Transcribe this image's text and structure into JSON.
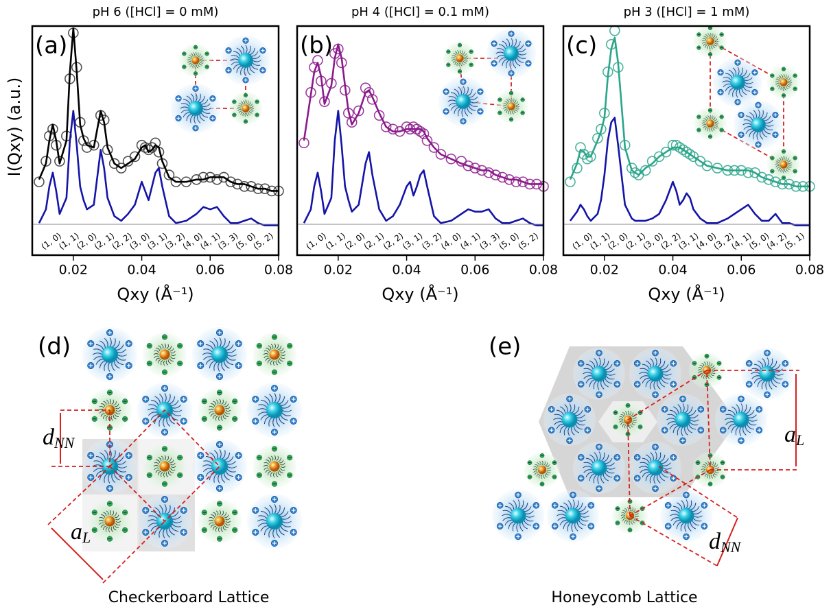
{
  "chart_data": [
    {
      "type": "line",
      "title": "pH 6 ([HCl] = 0 mM)",
      "panel_label": "(a)",
      "xlabel": "Qxy (Å⁻¹)",
      "ylabel": "I(Qxy) (a.u.)",
      "xlim": [
        0.008,
        0.08
      ],
      "xticks": [
        0.02,
        0.04,
        0.06,
        0.08
      ],
      "ylim": [
        0,
        100
      ],
      "x": [
        0.01,
        0.012,
        0.013,
        0.014,
        0.015,
        0.016,
        0.018,
        0.019,
        0.02,
        0.021,
        0.022,
        0.023,
        0.024,
        0.026,
        0.028,
        0.029,
        0.03,
        0.032,
        0.034,
        0.036,
        0.038,
        0.04,
        0.041,
        0.042,
        0.043,
        0.044,
        0.045,
        0.046,
        0.048,
        0.05,
        0.053,
        0.056,
        0.058,
        0.06,
        0.062,
        0.064,
        0.066,
        0.068,
        0.07,
        0.072,
        0.074,
        0.076,
        0.078,
        0.08
      ],
      "series": [
        {
          "style": "markers",
          "color": "#333333",
          "values": [
            32,
            41,
            52,
            55,
            48,
            41,
            52,
            77,
            97,
            82,
            58,
            50,
            47,
            48,
            61,
            59,
            46,
            40,
            38,
            41,
            43,
            48,
            47,
            46,
            47,
            49,
            45,
            40,
            35,
            32,
            32,
            33,
            34,
            34,
            33,
            34,
            32,
            31,
            30,
            30,
            29,
            29,
            28,
            28
          ]
        },
        {
          "style": "line",
          "color": "#000000",
          "values": [
            33,
            40,
            50,
            57,
            50,
            40,
            50,
            80,
            99,
            80,
            57,
            51,
            48,
            47,
            63,
            58,
            47,
            40,
            38,
            40,
            42,
            47,
            48,
            45,
            46,
            48,
            47,
            41,
            34,
            32,
            32,
            33,
            33,
            34,
            34,
            34,
            32,
            31,
            31,
            30,
            29,
            29,
            28,
            28
          ]
        },
        {
          "style": "line",
          "color": "#1414a8",
          "values": [
            14,
            20,
            30,
            36,
            28,
            18,
            25,
            50,
            63,
            48,
            30,
            24,
            20,
            22,
            46,
            38,
            25,
            17,
            15,
            18,
            22,
            32,
            28,
            24,
            30,
            36,
            38,
            30,
            17,
            14,
            15,
            18,
            21,
            20,
            21,
            17,
            14,
            14,
            15,
            16,
            14,
            13,
            13,
            13
          ]
        }
      ],
      "peak_labels": [
        "(1, 0)",
        "(1, 1)",
        "(2, 0)",
        "(2, 1)",
        "(2, 2)",
        "(3, 0)",
        "(3, 1)",
        "(3, 2)",
        "(4, 0)",
        "(4, 1)",
        "(3, 3)",
        "(5, 0)",
        "(5, 2)"
      ]
    },
    {
      "type": "line",
      "title": "pH 4 ([HCl] = 0.1 mM)",
      "panel_label": "(b)",
      "xlabel": "Qxy (Å⁻¹)",
      "xlim": [
        0.008,
        0.08
      ],
      "xticks": [
        0.02,
        0.04,
        0.06,
        0.08
      ],
      "ylim": [
        0,
        100
      ],
      "x": [
        0.01,
        0.012,
        0.013,
        0.014,
        0.015,
        0.016,
        0.018,
        0.019,
        0.02,
        0.021,
        0.022,
        0.023,
        0.024,
        0.026,
        0.028,
        0.029,
        0.03,
        0.032,
        0.034,
        0.036,
        0.038,
        0.04,
        0.041,
        0.042,
        0.043,
        0.044,
        0.045,
        0.046,
        0.048,
        0.05,
        0.053,
        0.056,
        0.058,
        0.06,
        0.062,
        0.064,
        0.066,
        0.068,
        0.07,
        0.072,
        0.074,
        0.076,
        0.078,
        0.08
      ],
      "series": [
        {
          "style": "markers",
          "color": "#8b1a8b",
          "values": [
            49,
            71,
            82,
            85,
            76,
            67,
            75,
            88,
            90,
            84,
            72,
            62,
            58,
            63,
            73,
            71,
            68,
            61,
            56,
            55,
            54,
            56,
            55,
            56,
            55,
            54,
            53,
            50,
            47,
            44,
            42,
            41,
            39,
            38,
            37,
            36,
            35,
            34,
            33,
            32,
            32,
            31,
            31,
            30
          ]
        },
        {
          "style": "line",
          "color": "#8b1a8b",
          "values": [
            50,
            70,
            80,
            84,
            78,
            66,
            74,
            86,
            92,
            86,
            74,
            63,
            57,
            62,
            71,
            72,
            69,
            62,
            56,
            54,
            54,
            55,
            55,
            55,
            55,
            55,
            54,
            51,
            47,
            44,
            42,
            40,
            39,
            38,
            37,
            37,
            35,
            34,
            33,
            33,
            32,
            31,
            31,
            31
          ]
        },
        {
          "style": "line",
          "color": "#1414a8",
          "values": [
            14,
            20,
            30,
            36,
            28,
            18,
            25,
            50,
            63,
            48,
            30,
            24,
            19,
            22,
            40,
            45,
            35,
            20,
            15,
            17,
            22,
            30,
            32,
            26,
            30,
            35,
            37,
            30,
            17,
            14,
            15,
            18,
            20,
            19,
            19,
            20,
            16,
            14,
            14,
            15,
            16,
            14,
            13,
            13
          ]
        }
      ],
      "peak_labels": [
        "(1, 0)",
        "(1, 1)",
        "(2, 0)",
        "(2, 1)",
        "(2, 2)",
        "(3, 1)",
        "(3, 2)",
        "(4, 0)",
        "(4, 1)",
        "(3, 3)",
        "(5, 0)",
        "(5, 2)"
      ]
    },
    {
      "type": "line",
      "title": "pH 3 ([HCl] = 1 mM)",
      "panel_label": "(c)",
      "xlabel": "Qxy (Å⁻¹)",
      "xlim": [
        0.008,
        0.08
      ],
      "xticks": [
        0.02,
        0.04,
        0.06,
        0.08
      ],
      "ylim": [
        0,
        100
      ],
      "x": [
        0.01,
        0.012,
        0.013,
        0.014,
        0.015,
        0.016,
        0.018,
        0.019,
        0.02,
        0.021,
        0.022,
        0.023,
        0.024,
        0.026,
        0.028,
        0.029,
        0.03,
        0.032,
        0.034,
        0.036,
        0.038,
        0.04,
        0.041,
        0.042,
        0.043,
        0.044,
        0.045,
        0.046,
        0.048,
        0.05,
        0.053,
        0.056,
        0.058,
        0.06,
        0.062,
        0.064,
        0.066,
        0.068,
        0.07,
        0.072,
        0.074,
        0.076,
        0.078,
        0.08
      ],
      "series": [
        {
          "style": "markers",
          "color": "#2aa58a",
          "values": [
            32,
            38,
            47,
            44,
            42,
            43,
            51,
            55,
            62,
            80,
            92,
            98,
            82,
            48,
            38,
            36,
            35,
            37,
            41,
            43,
            45,
            48,
            48,
            47,
            46,
            45,
            44,
            43,
            41,
            39,
            38,
            37,
            37,
            37,
            36,
            36,
            34,
            33,
            32,
            31,
            31,
            30,
            30,
            30
          ]
        },
        {
          "style": "line",
          "color": "#2aa58a",
          "values": [
            33,
            40,
            46,
            45,
            43,
            43,
            50,
            54,
            60,
            78,
            90,
            95,
            84,
            47,
            37,
            36,
            35,
            38,
            40,
            43,
            45,
            47,
            47,
            47,
            46,
            45,
            44,
            43,
            41,
            39,
            38,
            37,
            37,
            37,
            37,
            36,
            34,
            33,
            32,
            31,
            31,
            30,
            30,
            30
          ]
        },
        {
          "style": "line",
          "color": "#1414a8",
          "values": [
            15,
            19,
            22,
            20,
            17,
            15,
            18,
            24,
            35,
            50,
            58,
            60,
            48,
            22,
            16,
            15,
            15,
            15,
            16,
            18,
            24,
            32,
            28,
            22,
            24,
            27,
            25,
            20,
            16,
            14,
            14,
            16,
            18,
            20,
            22,
            18,
            15,
            15,
            18,
            14,
            14,
            13,
            13,
            13
          ]
        }
      ],
      "peak_labels": [
        "(1, 0)",
        "(1, 1)",
        "(2, 0)",
        "(2, 1)",
        "(3, 0)",
        "(2, 2)",
        "(3, 1)",
        "(4, 0)",
        "(3, 2)",
        "(4, 1)",
        "(5, 0)",
        "(4, 2)",
        "(5, 1)"
      ]
    }
  ],
  "diagrams": [
    {
      "label": "(d)",
      "caption": "Checkerboard Lattice",
      "spacing": {
        "base": "d",
        "sub": "NN"
      },
      "lattice": {
        "base": "a",
        "sub": "L"
      }
    },
    {
      "label": "(e)",
      "caption": "Honeycomb Lattice",
      "spacing": {
        "base": "d",
        "sub": "NN"
      },
      "lattice": {
        "base": "a",
        "sub": "L"
      }
    }
  ]
}
